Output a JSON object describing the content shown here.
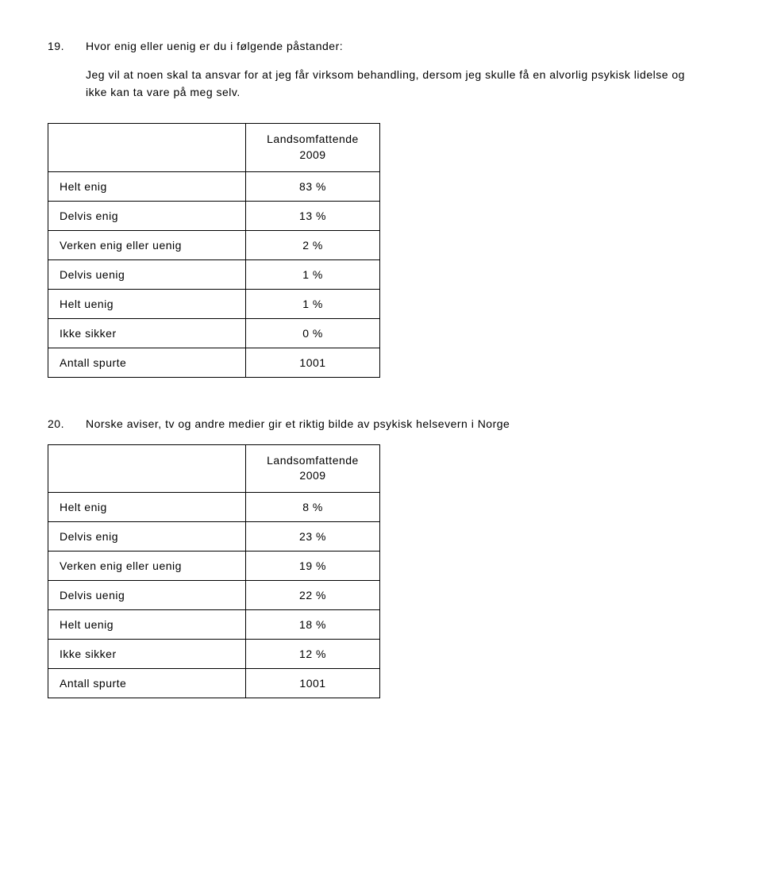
{
  "q19": {
    "num": "19.",
    "title": "Hvor enig eller uenig er du i følgende påstander:",
    "subtext": "Jeg vil at noen skal ta ansvar for at jeg får virksom behandling, dersom jeg skulle få en alvorlig psykisk lidelse og ikke kan ta vare på meg selv.",
    "header": "Landsomfattende 2009",
    "rows": [
      {
        "label": "Helt enig",
        "value": "83 %"
      },
      {
        "label": "Delvis enig",
        "value": "13 %"
      },
      {
        "label": "Verken enig eller uenig",
        "value": "2 %"
      },
      {
        "label": "Delvis uenig",
        "value": "1 %"
      },
      {
        "label": "Helt uenig",
        "value": "1 %"
      },
      {
        "label": "Ikke sikker",
        "value": "0 %"
      },
      {
        "label": "Antall spurte",
        "value": "1001"
      }
    ]
  },
  "q20": {
    "num": "20.",
    "title": "Norske aviser, tv og andre medier gir et riktig bilde av psykisk helsevern i Norge",
    "header": "Landsomfattende 2009",
    "rows": [
      {
        "label": "Helt enig",
        "value": "8 %"
      },
      {
        "label": "Delvis enig",
        "value": "23 %"
      },
      {
        "label": "Verken enig eller uenig",
        "value": "19 %"
      },
      {
        "label": "Delvis uenig",
        "value": "22 %"
      },
      {
        "label": "Helt uenig",
        "value": "18 %"
      },
      {
        "label": "Ikke sikker",
        "value": "12 %"
      },
      {
        "label": "Antall spurte",
        "value": "1001"
      }
    ]
  }
}
